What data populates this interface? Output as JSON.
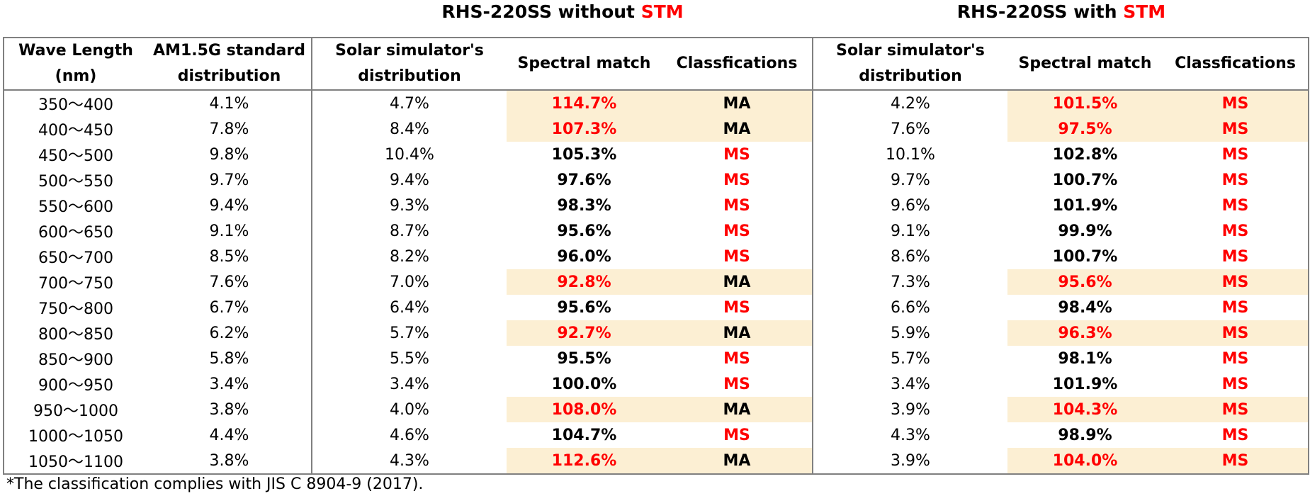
{
  "groups": [
    {
      "prefix": "RHS-220SS without ",
      "accent": "STM"
    },
    {
      "prefix": "RHS-220SS with ",
      "accent": "STM"
    }
  ],
  "headers": {
    "wavelength": "Wave Length (nm)",
    "am15g": "AM1.5G standard distribution",
    "without_distribution": "Solar simulator's distribution",
    "without_spectral_match": "Spectral match",
    "without_classification": "Classfications",
    "with_distribution": "Solar simulator's distribution",
    "with_spectral_match": "Spectral match",
    "with_classification": "Classfications"
  },
  "rows": [
    {
      "wl": "350～400",
      "am": "4.1%",
      "d1": "4.7%",
      "sm1": "114.7%",
      "c1": "MA",
      "d2": "4.2%",
      "sm2": "101.5%",
      "c2": "MS"
    },
    {
      "wl": "400～450",
      "am": "7.8%",
      "d1": "8.4%",
      "sm1": "107.3%",
      "c1": "MA",
      "d2": "7.6%",
      "sm2": "97.5%",
      "c2": "MS"
    },
    {
      "wl": "450～500",
      "am": "9.8%",
      "d1": "10.4%",
      "sm1": "105.3%",
      "c1": "MS",
      "d2": "10.1%",
      "sm2": "102.8%",
      "c2": "MS"
    },
    {
      "wl": "500～550",
      "am": "9.7%",
      "d1": "9.4%",
      "sm1": "97.6%",
      "c1": "MS",
      "d2": "9.7%",
      "sm2": "100.7%",
      "c2": "MS"
    },
    {
      "wl": "550～600",
      "am": "9.4%",
      "d1": "9.3%",
      "sm1": "98.3%",
      "c1": "MS",
      "d2": "9.6%",
      "sm2": "101.9%",
      "c2": "MS"
    },
    {
      "wl": "600～650",
      "am": "9.1%",
      "d1": "8.7%",
      "sm1": "95.6%",
      "c1": "MS",
      "d2": "9.1%",
      "sm2": "99.9%",
      "c2": "MS"
    },
    {
      "wl": "650～700",
      "am": "8.5%",
      "d1": "8.2%",
      "sm1": "96.0%",
      "c1": "MS",
      "d2": "8.6%",
      "sm2": "100.7%",
      "c2": "MS"
    },
    {
      "wl": "700～750",
      "am": "7.6%",
      "d1": "7.0%",
      "sm1": "92.8%",
      "c1": "MA",
      "d2": "7.3%",
      "sm2": "95.6%",
      "c2": "MS"
    },
    {
      "wl": "750～800",
      "am": "6.7%",
      "d1": "6.4%",
      "sm1": "95.6%",
      "c1": "MS",
      "d2": "6.6%",
      "sm2": "98.4%",
      "c2": "MS"
    },
    {
      "wl": "800～850",
      "am": "6.2%",
      "d1": "5.7%",
      "sm1": "92.7%",
      "c1": "MA",
      "d2": "5.9%",
      "sm2": "96.3%",
      "c2": "MS"
    },
    {
      "wl": "850～900",
      "am": "5.8%",
      "d1": "5.5%",
      "sm1": "95.5%",
      "c1": "MS",
      "d2": "5.7%",
      "sm2": "98.1%",
      "c2": "MS"
    },
    {
      "wl": "900～950",
      "am": "3.4%",
      "d1": "3.4%",
      "sm1": "100.0%",
      "c1": "MS",
      "d2": "3.4%",
      "sm2": "101.9%",
      "c2": "MS"
    },
    {
      "wl": "950～1000",
      "am": "3.8%",
      "d1": "4.0%",
      "sm1": "108.0%",
      "c1": "MA",
      "d2": "3.9%",
      "sm2": "104.3%",
      "c2": "MS"
    },
    {
      "wl": "1000～1050",
      "am": "4.4%",
      "d1": "4.6%",
      "sm1": "104.7%",
      "c1": "MS",
      "d2": "4.3%",
      "sm2": "98.9%",
      "c2": "MS"
    },
    {
      "wl": "1050～1100",
      "am": "3.8%",
      "d1": "4.3%",
      "sm1": "112.6%",
      "c1": "MA",
      "d2": "3.9%",
      "sm2": "104.0%",
      "c2": "MS"
    }
  ],
  "footnote": "*The classification complies with JIS C 8904-9 (2017).",
  "colors": {
    "accent_red": "#ff0000",
    "highlight_fill": "#fcefd3",
    "border_gray": "#808080"
  }
}
